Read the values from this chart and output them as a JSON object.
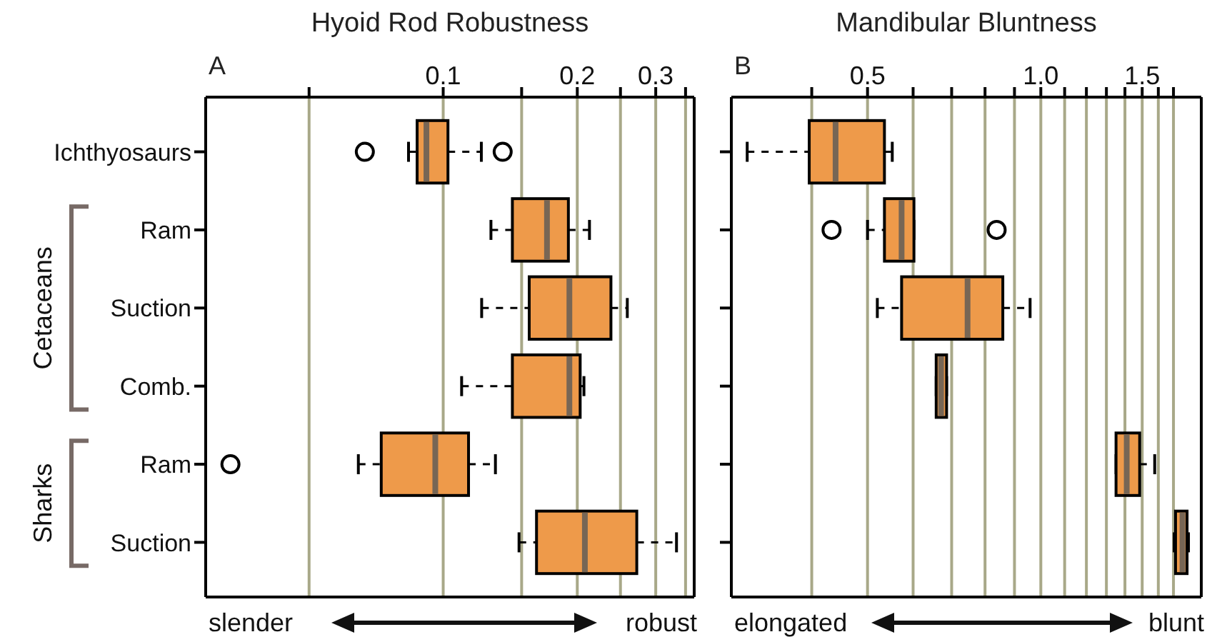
{
  "chart_data": [
    {
      "type": "box",
      "title": "Hyoid Rod Robustness",
      "categories": [
        "Ichthyosaurs",
        "Ram",
        "Suction",
        "Comb.",
        "Ram",
        "Suction"
      ],
      "log": "x",
      "orientation": "horizontal",
      "grid": "x",
      "xlim": [
        0.0293,
        0.366
      ],
      "xticks": [
        {
          "value": 0.05,
          "label": null
        },
        0.1,
        {
          "value": 0.15,
          "label": null
        },
        0.2,
        {
          "value": 0.25,
          "label": null
        },
        0.3,
        {
          "value": 0.35,
          "label": null
        }
      ],
      "annotations": [
        "A",
        "slender",
        "robust",
        "Cetaceans",
        "Sharks"
      ],
      "series": [
        {
          "color": "#ee9a4a",
          "boxes": [
            {
              "low": 0.0836,
              "q1": 0.0874,
              "median": 0.0917,
              "q3": 0.1025,
              "high": 0.1218,
              "outliers": [
                0.0667,
                0.136
              ]
            },
            {
              "low": 0.128,
              "q1": 0.143,
              "median": 0.171,
              "q3": 0.191,
              "high": 0.213
            },
            {
              "low": 0.122,
              "q1": 0.156,
              "median": 0.192,
              "q3": 0.238,
              "high": 0.259
            },
            {
              "low": 0.11,
              "q1": 0.143,
              "median": 0.192,
              "q3": 0.203,
              "high": 0.207
            },
            {
              "low": 0.0645,
              "q1": 0.0726,
              "median": 0.096,
              "q3": 0.114,
              "high": 0.131,
              "outliers": [
                0.0333
              ]
            },
            {
              "low": 0.148,
              "q1": 0.162,
              "median": 0.208,
              "q3": 0.272,
              "high": 0.334
            }
          ]
        }
      ]
    },
    {
      "type": "box",
      "title": "Mandibular Bluntness",
      "categories": [
        null,
        null,
        null,
        null,
        null,
        null
      ],
      "tick_labels": "x",
      "log": "x",
      "orientation": "horizontal",
      "grid": "x",
      "xlim": [
        0.29,
        1.9
      ],
      "xticks": [
        {
          "value": 0.4,
          "label": null
        },
        0.5,
        {
          "value": 0.6,
          "label": null
        },
        {
          "value": 0.7,
          "label": null
        },
        {
          "value": 0.8,
          "label": null
        },
        {
          "value": 0.9,
          "label": null
        },
        {
          "value": 1,
          "label": "1.0"
        },
        {
          "value": 1.1,
          "label": null
        },
        {
          "value": 1.2,
          "label": null
        },
        {
          "value": 1.3,
          "label": null
        },
        {
          "value": 1.4,
          "label": null
        },
        1.5,
        {
          "value": 1.6,
          "label": null
        },
        {
          "value": 1.7,
          "label": null
        }
      ],
      "annotations": [
        "B",
        "elongated",
        "blunt"
      ],
      "series": [
        {
          "color": "#ee9a4a",
          "boxes": [
            {
              "low": 0.309,
              "q1": 0.396,
              "median": 0.44,
              "q3": 0.535,
              "high": 0.552
            },
            {
              "low": 0.5,
              "q1": 0.535,
              "median": 0.573,
              "q3": 0.602,
              "high": 0.602,
              "outliers": [
                0.433,
                0.838
              ]
            },
            {
              "low": 0.52,
              "q1": 0.573,
              "median": 0.746,
              "q3": 0.859,
              "high": 0.958
            },
            {
              "low": 0.658,
              "q1": 0.658,
              "median": 0.671,
              "q3": 0.686,
              "high": 0.686
            },
            {
              "low": 1.351,
              "q1": 1.351,
              "median": 1.41,
              "q3": 1.485,
              "high": 1.577
            },
            {
              "low": 1.705,
              "q1": 1.714,
              "median": 1.762,
              "q3": 1.795,
              "high": 1.805
            }
          ]
        }
      ]
    }
  ]
}
